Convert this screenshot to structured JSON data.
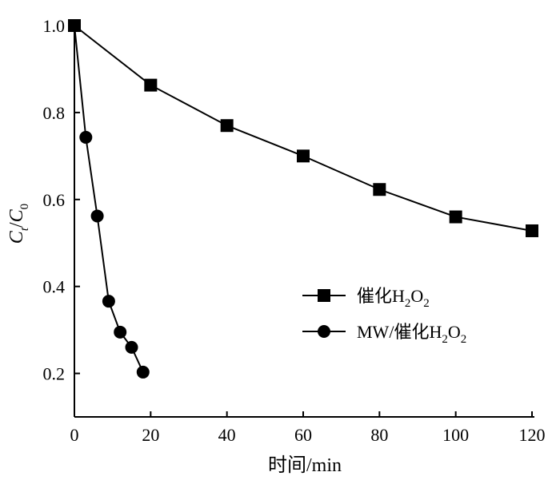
{
  "chart_data": {
    "type": "line",
    "xlabel": "时间/min",
    "ylabel": {
      "main": "C",
      "main_sub": "t",
      "sep": "/",
      "denom": "C",
      "denom_sub": "0"
    },
    "xlim": [
      0,
      120
    ],
    "ylim": [
      0.1,
      1.0
    ],
    "x_ticks": [
      0,
      20,
      40,
      60,
      80,
      100,
      120
    ],
    "y_ticks": [
      0.2,
      0.4,
      0.6,
      0.8,
      1.0
    ],
    "grid": false,
    "legend_position": "right-middle",
    "series": [
      {
        "name": "催化H2O2",
        "legend": {
          "prefix": "催化H",
          "sub1": "2",
          "mid": "O",
          "sub2": "2"
        },
        "marker": "square",
        "x": [
          0,
          20,
          40,
          60,
          80,
          100,
          120
        ],
        "y": [
          1.0,
          0.863,
          0.77,
          0.7,
          0.623,
          0.56,
          0.528
        ]
      },
      {
        "name": "MW/催化H2O2",
        "legend": {
          "prefix": "MW/催化H",
          "sub1": "2",
          "mid": "O",
          "sub2": "2"
        },
        "marker": "circle",
        "x": [
          0,
          3,
          6,
          9,
          12,
          15,
          18
        ],
        "y": [
          1.0,
          0.743,
          0.562,
          0.366,
          0.295,
          0.26,
          0.203
        ]
      }
    ],
    "color": "#000000"
  }
}
